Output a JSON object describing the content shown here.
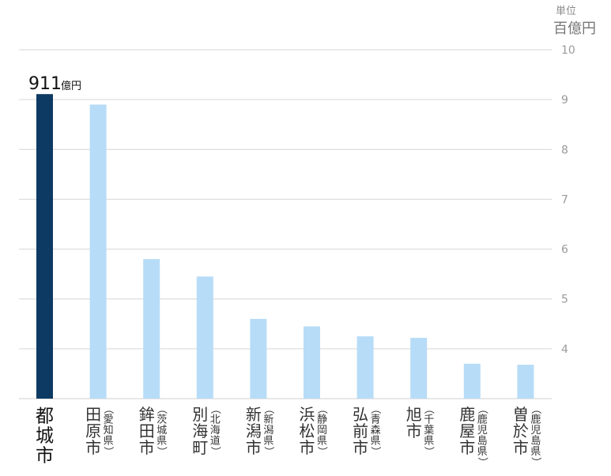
{
  "chart_data": {
    "type": "bar",
    "unit_label": "単位",
    "unit": "百億円",
    "ylim": [
      3,
      10
    ],
    "yticks": [
      4,
      5,
      6,
      7,
      8,
      9,
      10
    ],
    "grid": true,
    "categories": [
      {
        "city": "都城市",
        "pref": ""
      },
      {
        "city": "田原市",
        "pref": "（愛知県）"
      },
      {
        "city": "鉾田市",
        "pref": "（茨城県）"
      },
      {
        "city": "別海町",
        "pref": "（北海道）"
      },
      {
        "city": "新潟市",
        "pref": "（新潟県）"
      },
      {
        "city": "浜松市",
        "pref": "（静岡県）"
      },
      {
        "city": "弘前市",
        "pref": "（青森県）"
      },
      {
        "city": "旭市",
        "pref": "（千葉県）"
      },
      {
        "city": "鹿屋市",
        "pref": "（鹿児島県）"
      },
      {
        "city": "曽於市",
        "pref": "（鹿児島県）"
      }
    ],
    "values": [
      9.11,
      8.9,
      5.8,
      5.45,
      4.6,
      4.45,
      4.25,
      4.22,
      3.7,
      3.68
    ],
    "highlight_index": 0,
    "highlight_color": "#0d3a63",
    "bar_color": "#b7dcf7",
    "annotation": {
      "value": "911",
      "unit": "億円"
    }
  }
}
